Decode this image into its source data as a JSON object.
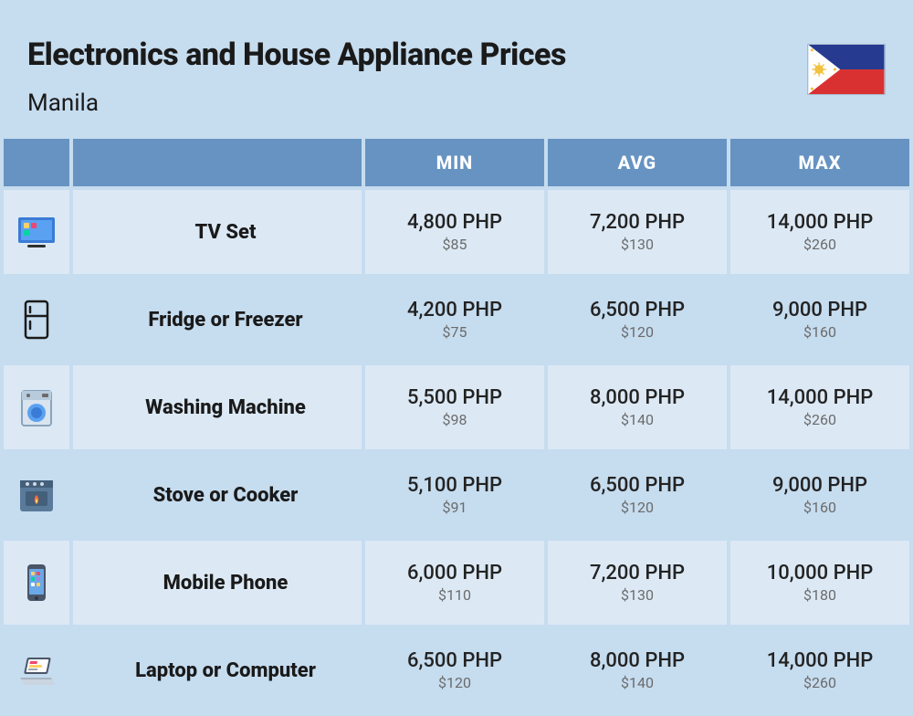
{
  "header": {
    "title": "Electronics and House Appliance Prices",
    "city": "Manila",
    "flag": {
      "top_color": "#263a90",
      "bottom_color": "#d93131",
      "triangle_color": "#ffffff",
      "sun_color": "#f2c23e"
    }
  },
  "columns": {
    "min": "MIN",
    "avg": "AVG",
    "max": "MAX"
  },
  "colors": {
    "page_bg": "#c6dcef",
    "row_odd_bg": "#dce9f5",
    "row_even_bg": "#c6dcef",
    "header_bg": "#6693c2",
    "header_text": "#ffffff",
    "title_color": "#1a1a1a",
    "php_color": "#232323",
    "usd_color": "#6b6b6b"
  },
  "typography": {
    "title_fontsize": 34,
    "subtitle_fontsize": 26,
    "col_header_fontsize": 20,
    "name_fontsize": 22,
    "php_fontsize": 22,
    "usd_fontsize": 16
  },
  "rows": [
    {
      "icon": "tv-icon",
      "name": "TV Set",
      "min_php": "4,800 PHP",
      "min_usd": "$85",
      "avg_php": "7,200 PHP",
      "avg_usd": "$130",
      "max_php": "14,000 PHP",
      "max_usd": "$260"
    },
    {
      "icon": "fridge-icon",
      "name": "Fridge or Freezer",
      "min_php": "4,200 PHP",
      "min_usd": "$75",
      "avg_php": "6,500 PHP",
      "avg_usd": "$120",
      "max_php": "9,000 PHP",
      "max_usd": "$160"
    },
    {
      "icon": "washing-machine-icon",
      "name": "Washing Machine",
      "min_php": "5,500 PHP",
      "min_usd": "$98",
      "avg_php": "8,000 PHP",
      "avg_usd": "$140",
      "max_php": "14,000 PHP",
      "max_usd": "$260"
    },
    {
      "icon": "stove-icon",
      "name": "Stove or Cooker",
      "min_php": "5,100 PHP",
      "min_usd": "$91",
      "avg_php": "6,500 PHP",
      "avg_usd": "$120",
      "max_php": "9,000 PHP",
      "max_usd": "$160"
    },
    {
      "icon": "phone-icon",
      "name": "Mobile Phone",
      "min_php": "6,000 PHP",
      "min_usd": "$110",
      "avg_php": "7,200 PHP",
      "avg_usd": "$130",
      "max_php": "10,000 PHP",
      "max_usd": "$180"
    },
    {
      "icon": "laptop-icon",
      "name": "Laptop or Computer",
      "min_php": "6,500 PHP",
      "min_usd": "$120",
      "avg_php": "8,000 PHP",
      "avg_usd": "$140",
      "max_php": "14,000 PHP",
      "max_usd": "$260"
    }
  ]
}
